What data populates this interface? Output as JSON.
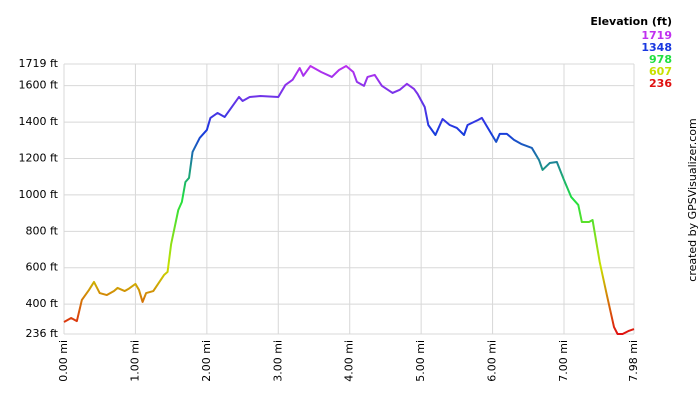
{
  "chart_data": {
    "type": "line",
    "x": [
      0,
      0.1,
      0.18,
      0.25,
      0.35,
      0.42,
      0.5,
      0.6,
      0.7,
      0.75,
      0.85,
      0.9,
      1.0,
      1.05,
      1.1,
      1.15,
      1.25,
      1.4,
      1.45,
      1.5,
      1.6,
      1.65,
      1.7,
      1.75,
      1.8,
      1.9,
      2.0,
      2.05,
      2.15,
      2.25,
      2.35,
      2.45,
      2.5,
      2.6,
      2.75,
      3.0,
      3.1,
      3.2,
      3.3,
      3.35,
      3.45,
      3.6,
      3.75,
      3.85,
      3.95,
      4.05,
      4.1,
      4.2,
      4.25,
      4.35,
      4.45,
      4.6,
      4.7,
      4.8,
      4.9,
      4.95,
      5.05,
      5.1,
      5.2,
      5.3,
      5.4,
      5.5,
      5.6,
      5.65,
      5.8,
      5.85,
      5.95,
      6.05,
      6.1,
      6.2,
      6.3,
      6.4,
      6.55,
      6.65,
      6.7,
      6.8,
      6.9,
      7.0,
      7.1,
      7.2,
      7.25,
      7.35,
      7.4,
      7.5,
      7.6,
      7.7,
      7.75,
      7.82,
      7.9,
      7.98
    ],
    "values": [
      302,
      324,
      307,
      423,
      478,
      522,
      461,
      450,
      472,
      489,
      472,
      483,
      511,
      478,
      412,
      461,
      472,
      560,
      577,
      730,
      917,
      961,
      1071,
      1093,
      1236,
      1313,
      1357,
      1423,
      1450,
      1428,
      1483,
      1538,
      1516,
      1538,
      1543,
      1538,
      1604,
      1632,
      1697,
      1654,
      1708,
      1675,
      1648,
      1686,
      1708,
      1675,
      1621,
      1599,
      1648,
      1659,
      1599,
      1560,
      1577,
      1610,
      1582,
      1555,
      1483,
      1384,
      1329,
      1417,
      1384,
      1368,
      1329,
      1384,
      1412,
      1423,
      1357,
      1291,
      1335,
      1335,
      1302,
      1280,
      1258,
      1192,
      1137,
      1175,
      1181,
      1082,
      989,
      945,
      851,
      851,
      862,
      631,
      450,
      274,
      236,
      236,
      252,
      263
    ],
    "xlim": [
      0,
      7.98
    ],
    "ylim": [
      236,
      1719
    ],
    "xticks": [
      {
        "value": 0,
        "label": "0.00 mi"
      },
      {
        "value": 1,
        "label": "1.00 mi"
      },
      {
        "value": 2,
        "label": "2.00 mi"
      },
      {
        "value": 3,
        "label": "3.00 mi"
      },
      {
        "value": 4,
        "label": "4.00 mi"
      },
      {
        "value": 5,
        "label": "5.00 mi"
      },
      {
        "value": 6,
        "label": "6.00 mi"
      },
      {
        "value": 7,
        "label": "7.00 mi"
      },
      {
        "value": 7.98,
        "label": "7.98 mi"
      }
    ],
    "yticks": [
      {
        "value": 236,
        "label": "236 ft"
      },
      {
        "value": 400,
        "label": "400 ft"
      },
      {
        "value": 600,
        "label": "600 ft"
      },
      {
        "value": 800,
        "label": "800 ft"
      },
      {
        "value": 1000,
        "label": "1000 ft"
      },
      {
        "value": 1200,
        "label": "1200 ft"
      },
      {
        "value": 1400,
        "label": "1400 ft"
      },
      {
        "value": 1600,
        "label": "1600 ft"
      },
      {
        "value": 1719,
        "label": "1719 ft"
      }
    ],
    "grid": true,
    "legend": {
      "title": "Elevation (ft)",
      "levels": [
        {
          "value": 1719,
          "color": "#c030f0"
        },
        {
          "value": 1348,
          "color": "#1838e0"
        },
        {
          "value": 978,
          "color": "#20e040"
        },
        {
          "value": 607,
          "color": "#c8e000"
        },
        {
          "value": 236,
          "color": "#e01010"
        }
      ]
    },
    "credit": "created by GPSVisualizer.com"
  }
}
